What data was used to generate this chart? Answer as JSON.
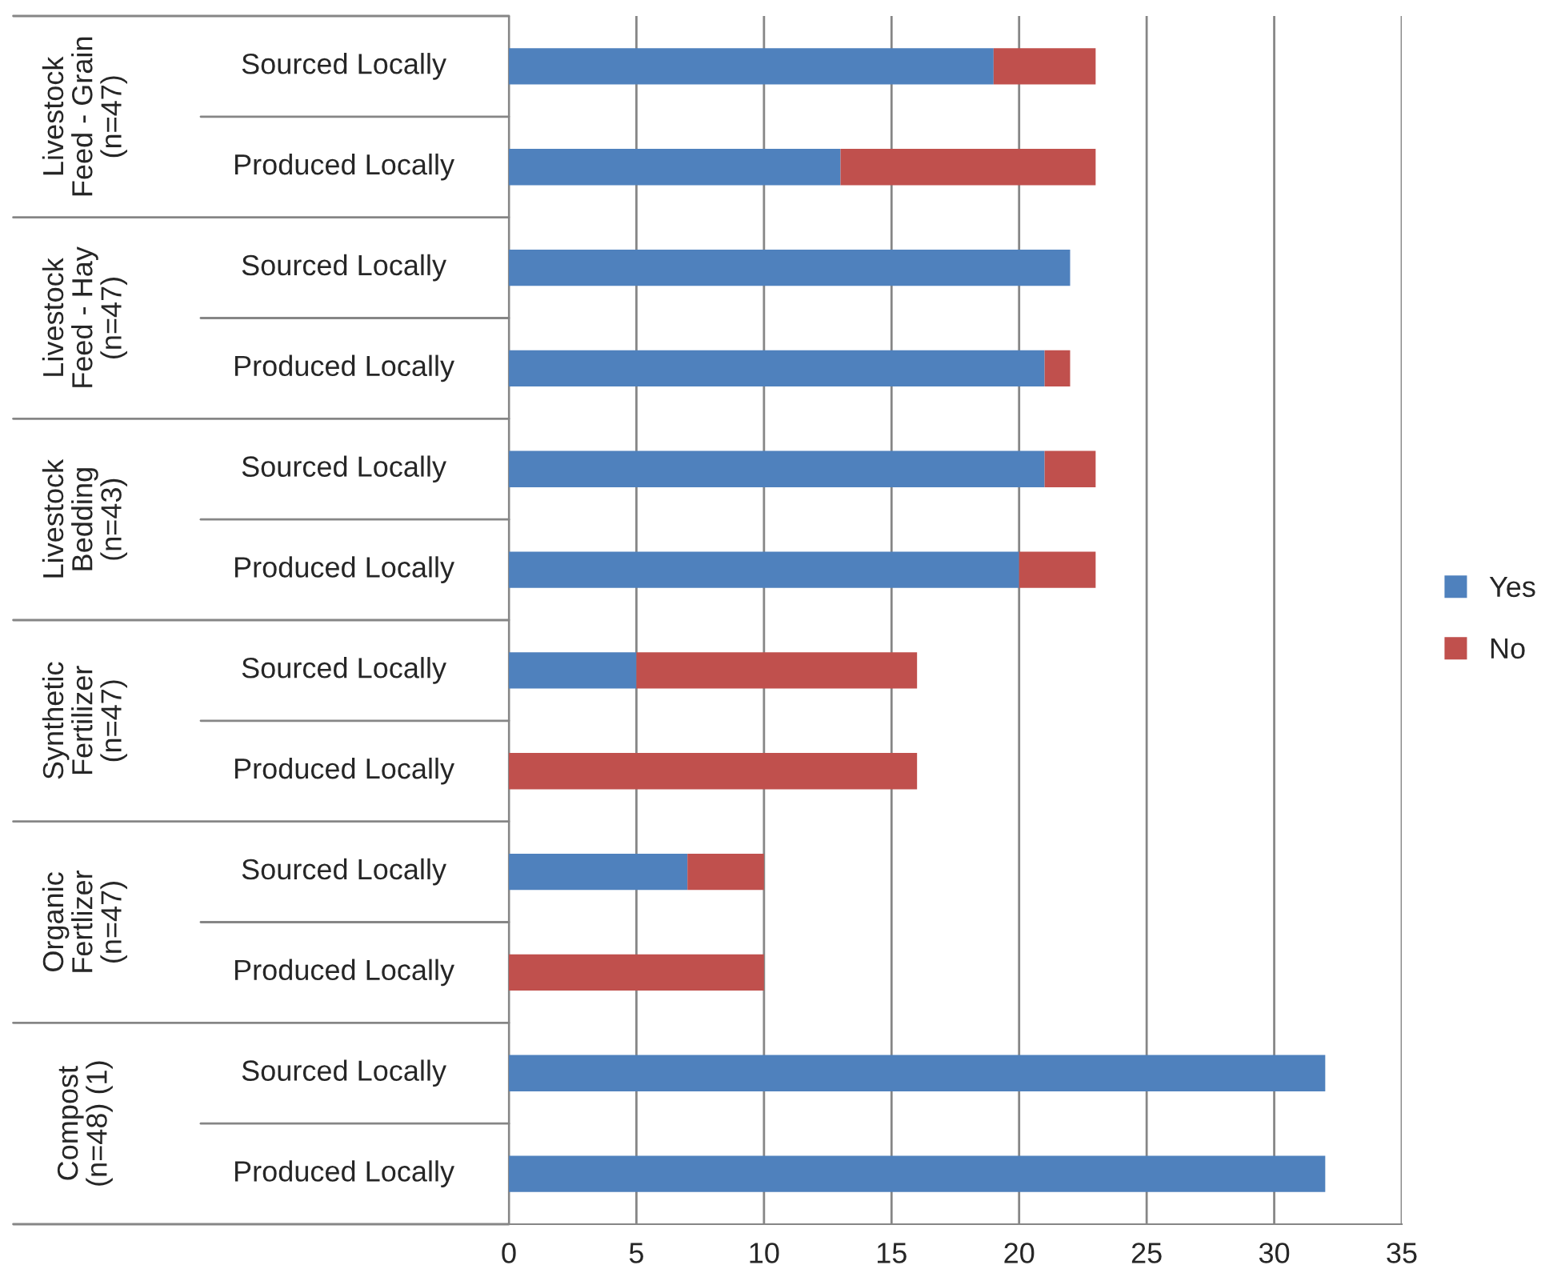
{
  "chart_data": {
    "type": "bar",
    "orientation": "horizontal",
    "stacked": true,
    "categories": [
      "Sourced Locally",
      "Produced Locally",
      "Sourced Locally",
      "Produced Locally",
      "Sourced Locally",
      "Produced Locally",
      "Sourced Locally",
      "Produced Locally",
      "Sourced Locally",
      "Produced Locally",
      "Sourced Locally",
      "Produced Locally"
    ],
    "series": [
      {
        "name": "Yes",
        "color": "#4f81bd",
        "values": [
          19,
          13,
          22,
          21,
          21,
          20,
          5,
          0,
          7,
          0,
          32,
          32
        ]
      },
      {
        "name": "No",
        "color": "#c0504d",
        "values": [
          4,
          10,
          0,
          1,
          2,
          3,
          11,
          16,
          3,
          10,
          0,
          0
        ]
      }
    ],
    "annotations": [
      "Livestock\nFeed - Grain\n(n=47)",
      "Livestock\nFeed - Hay\n(n=47)",
      "Livestock\nBedding\n(n=43)",
      "Synthetic\nFertilizer\n(n=47)",
      "Organic\nFertlizer\n(n=47)",
      "Compost\n(n=48) (1)"
    ],
    "xlim": [
      0,
      35
    ],
    "xticks": [
      0,
      5,
      10,
      15,
      20,
      25,
      30,
      35
    ],
    "grid": "x",
    "legend": "right"
  }
}
